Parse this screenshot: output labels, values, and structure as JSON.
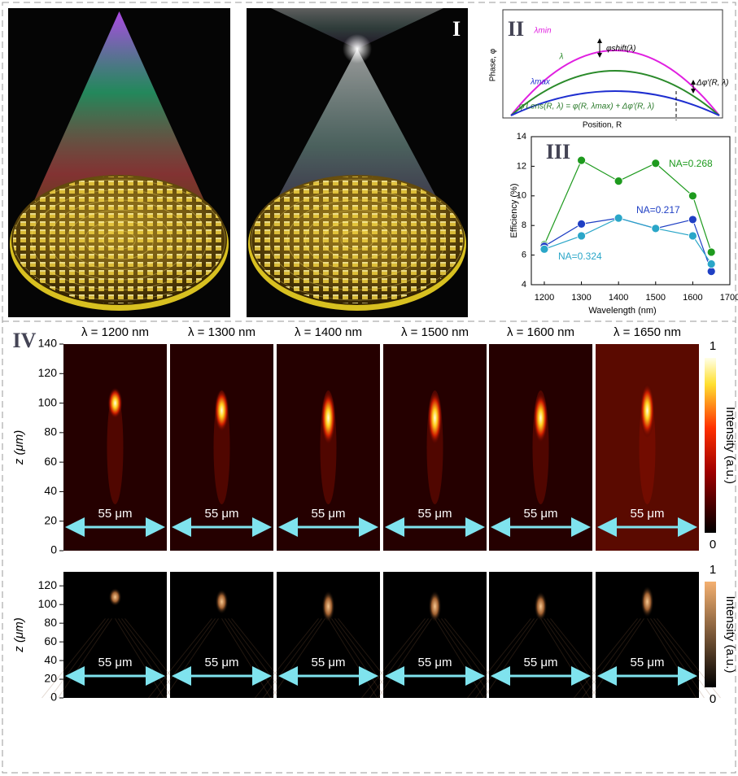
{
  "panel_labels": [
    "I",
    "II",
    "III",
    "IV"
  ],
  "phase_diagram": {
    "y_label": "Phase, φ",
    "x_label": "Position, R",
    "lambda_min": "λmin",
    "lambda": "λ",
    "lambda_max": "λmax",
    "shift": "φshift(λ)",
    "delta": "Δφ′(R, λ)",
    "formula": "φ′Lens(R, λ) = φ(R, λmax) + Δφ′(R, λ)"
  },
  "chart_data": {
    "type": "line",
    "x_label": "Wavelength (nm)",
    "y_label": "Efficiency (%)",
    "x": [
      1200,
      1300,
      1400,
      1500,
      1600,
      1650
    ],
    "series": [
      {
        "name": "NA=0.268",
        "color": "#1e9a1e",
        "values": [
          6.7,
          12.4,
          11.0,
          12.2,
          10.0,
          6.2
        ]
      },
      {
        "name": "NA=0.217",
        "color": "#1f3fc4",
        "values": [
          6.6,
          8.1,
          8.5,
          7.8,
          8.4,
          4.9
        ]
      },
      {
        "name": "NA=0.324",
        "color": "#2aa6c8",
        "values": [
          6.4,
          7.3,
          8.5,
          7.8,
          7.3,
          5.4
        ]
      }
    ],
    "xlim": [
      1165,
      1700
    ],
    "xticks": [
      1200,
      1300,
      1400,
      1500,
      1600,
      1700
    ],
    "ylim": [
      4,
      14
    ],
    "yticks": [
      4,
      6,
      8,
      10,
      12,
      14
    ]
  },
  "focal_maps": {
    "wavelengths": [
      "λ = 1200 nm",
      "λ = 1300 nm",
      "λ = 1400 nm",
      "λ = 1500 nm",
      "λ = 1600 nm",
      "λ = 1650 nm"
    ],
    "scale_bar": "55 μm",
    "y_label": "z (μm)",
    "colorbar_label": "Intensity (a.u.)",
    "colorbar_ticks": [
      0,
      1
    ],
    "rows": [
      {
        "ylim": [
          0,
          140
        ],
        "yticks": [
          0,
          20,
          40,
          60,
          80,
          100,
          120,
          140
        ]
      },
      {
        "ylim": [
          0,
          135
        ],
        "yticks": [
          0,
          20,
          40,
          60,
          80,
          100,
          120
        ]
      }
    ]
  }
}
